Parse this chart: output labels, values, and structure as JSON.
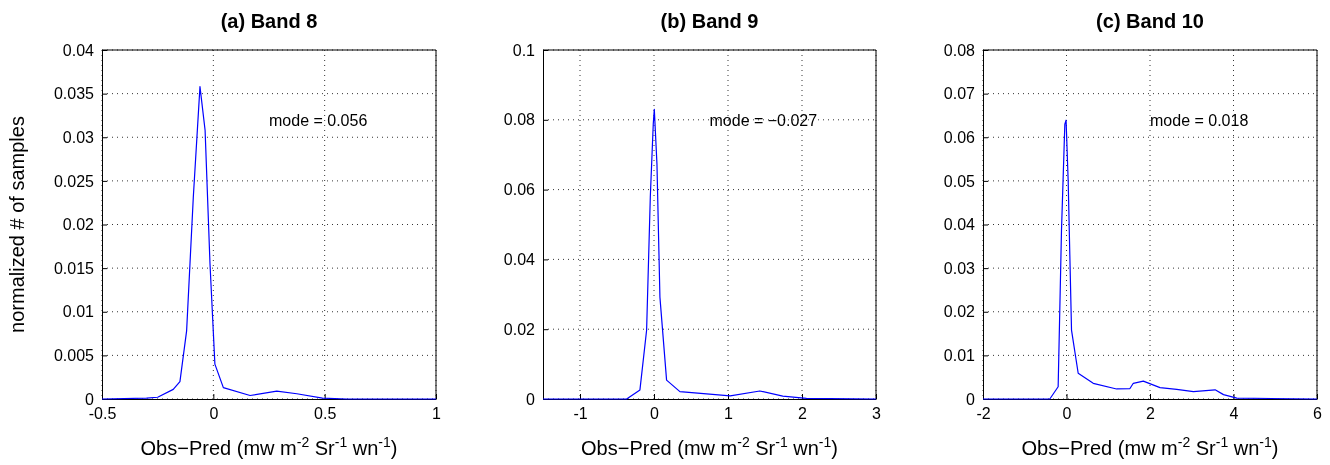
{
  "chart_data": [
    {
      "type": "line",
      "title": "(a) Band 8",
      "xlabel": "Obs−Pred (mw m$^{-2}$ Sr$^{-1}$ wn$^{-1}$)",
      "ylabel": "normalized # of samples",
      "annotations": [
        "mode = 0.056"
      ],
      "xlim": [
        -0.5,
        1
      ],
      "xticks": [
        -0.5,
        0,
        0.5,
        1
      ],
      "ylim": [
        0,
        0.04
      ],
      "yticks": [
        0,
        0.005,
        0.01,
        0.015,
        0.02,
        0.025,
        0.03,
        0.035,
        0.04
      ],
      "grid": true,
      "series": [
        {
          "color": "#0000ff",
          "x": [
            -0.5,
            -0.3,
            -0.25,
            -0.18,
            -0.15,
            -0.12,
            -0.09,
            -0.06,
            -0.037,
            -0.015,
            0.007,
            0.045,
            0.165,
            0.285,
            0.375,
            0.49,
            0.6,
            1
          ],
          "values": [
            0,
            0.0001,
            0.0002,
            0.0011,
            0.002,
            0.0078,
            0.0231,
            0.0358,
            0.0308,
            0.0155,
            0.004,
            0.0013,
            0.0004,
            0.0009,
            0.0006,
            0.0001,
            0,
            0
          ]
        }
      ]
    },
    {
      "type": "line",
      "title": "(b) Band 9",
      "xlabel": "Obs−Pred (mw m$^{-2}$ Sr$^{-1}$ wn$^{-1}$)",
      "annotations": [
        "mode = −0.027"
      ],
      "xlim": [
        -1.5,
        3
      ],
      "xticks": [
        -1,
        0,
        1,
        2,
        3
      ],
      "ylim": [
        0,
        0.1
      ],
      "yticks": [
        0,
        0.02,
        0.04,
        0.06,
        0.08,
        0.1
      ],
      "grid": true,
      "series": [
        {
          "color": "#0000ff",
          "x": [
            -1.5,
            -0.37,
            -0.19,
            -0.1,
            -0.05,
            -0.01,
            0.004,
            0.04,
            0.08,
            0.17,
            0.35,
            1.03,
            1.43,
            1.74,
            2.06,
            3
          ],
          "values": [
            0,
            0,
            0.0026,
            0.0197,
            0.0578,
            0.0788,
            0.083,
            0.0673,
            0.0292,
            0.0054,
            0.0021,
            0.0009,
            0.0023,
            0.0008,
            0.0002,
            0
          ]
        }
      ]
    },
    {
      "type": "line",
      "title": "(c) Band 10",
      "xlabel": "Obs−Pred (mw m$^{-2}$ Sr$^{-1}$ wn$^{-1}$)",
      "annotations": [
        "mode = 0.018"
      ],
      "xlim": [
        -2,
        6
      ],
      "xticks": [
        -2,
        0,
        2,
        4,
        6
      ],
      "ylim": [
        0,
        0.08
      ],
      "yticks": [
        0,
        0.01,
        0.02,
        0.03,
        0.04,
        0.05,
        0.06,
        0.07,
        0.08
      ],
      "grid": true,
      "series": [
        {
          "color": "#0000ff",
          "x": [
            -2,
            -0.4,
            -0.2,
            -0.12,
            -0.04,
            -0.01,
            0.04,
            0.12,
            0.28,
            0.64,
            1.2,
            1.52,
            1.6,
            1.84,
            2.24,
            2.64,
            3.04,
            3.56,
            3.76,
            4.08,
            6
          ],
          "values": [
            0,
            0,
            0.0028,
            0.0386,
            0.063,
            0.0639,
            0.05,
            0.0158,
            0.0059,
            0.0036,
            0.0023,
            0.0024,
            0.0036,
            0.0041,
            0.0026,
            0.0022,
            0.0017,
            0.0021,
            0.001,
            0.0002,
            0
          ]
        }
      ]
    }
  ]
}
